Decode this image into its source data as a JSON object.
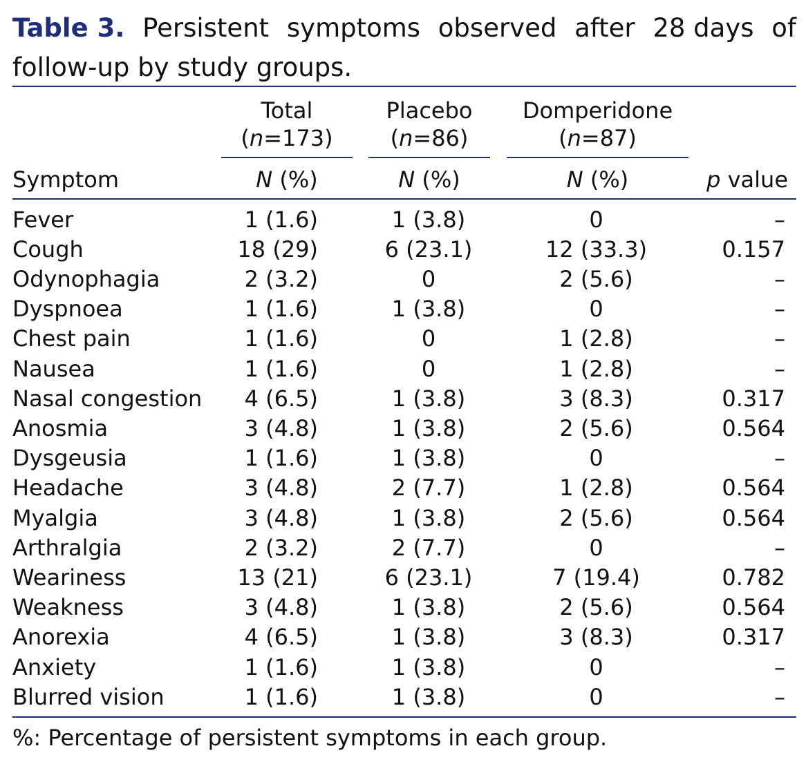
{
  "caption": {
    "label": "Table 3.",
    "line1_words": [
      "Persistent",
      "symptoms",
      "observed",
      "after",
      "28 days",
      "of"
    ],
    "line2": "follow-up by study groups."
  },
  "headers": {
    "total_name": "Total",
    "total_n": "173",
    "placebo_name": "Placebo",
    "placebo_n": "86",
    "domperidone_name": "Domperidone",
    "domperidone_n": "87",
    "n_symbol": "n",
    "equals": "=",
    "symptom": "Symptom",
    "count_symbol": "N",
    "count_pct": "(%)",
    "p_symbol": "p",
    "p_word": "value"
  },
  "rows": [
    {
      "symptom": "Fever",
      "total": "1 (1.6)",
      "placebo": "1 (3.8)",
      "domperidone": "0",
      "p": "–"
    },
    {
      "symptom": "Cough",
      "total": "18 (29)",
      "placebo": "6 (23.1)",
      "domperidone": "12 (33.3)",
      "p": "0.157"
    },
    {
      "symptom": "Odynophagia",
      "total": "2 (3.2)",
      "placebo": "0",
      "domperidone": "2 (5.6)",
      "p": "–"
    },
    {
      "symptom": "Dyspnoea",
      "total": "1 (1.6)",
      "placebo": "1 (3.8)",
      "domperidone": "0",
      "p": "–"
    },
    {
      "symptom": "Chest pain",
      "total": "1 (1.6)",
      "placebo": "0",
      "domperidone": "1 (2.8)",
      "p": "–"
    },
    {
      "symptom": "Nausea",
      "total": "1 (1.6)",
      "placebo": "0",
      "domperidone": "1 (2.8)",
      "p": "–"
    },
    {
      "symptom": "Nasal congestion",
      "total": "4 (6.5)",
      "placebo": "1 (3.8)",
      "domperidone": "3 (8.3)",
      "p": "0.317"
    },
    {
      "symptom": "Anosmia",
      "total": "3 (4.8)",
      "placebo": "1 (3.8)",
      "domperidone": "2 (5.6)",
      "p": "0.564"
    },
    {
      "symptom": "Dysgeusia",
      "total": "1 (1.6)",
      "placebo": "1 (3.8)",
      "domperidone": "0",
      "p": "–"
    },
    {
      "symptom": "Headache",
      "total": "3 (4.8)",
      "placebo": "2 (7.7)",
      "domperidone": "1 (2.8)",
      "p": "0.564"
    },
    {
      "symptom": "Myalgia",
      "total": "3 (4.8)",
      "placebo": "1 (3.8)",
      "domperidone": "2 (5.6)",
      "p": "0.564"
    },
    {
      "symptom": "Arthralgia",
      "total": "2 (3.2)",
      "placebo": "2 (7.7)",
      "domperidone": "0",
      "p": "–"
    },
    {
      "symptom": "Weariness",
      "total": "13 (21)",
      "placebo": "6 (23.1)",
      "domperidone": "7 (19.4)",
      "p": "0.782"
    },
    {
      "symptom": "Weakness",
      "total": "3 (4.8)",
      "placebo": "1 (3.8)",
      "domperidone": "2 (5.6)",
      "p": "0.564"
    },
    {
      "symptom": "Anorexia",
      "total": "4 (6.5)",
      "placebo": "1 (3.8)",
      "domperidone": "3 (8.3)",
      "p": "0.317"
    },
    {
      "symptom": "Anxiety",
      "total": "1 (1.6)",
      "placebo": "1 (3.8)",
      "domperidone": "0",
      "p": "–"
    },
    {
      "symptom": "Blurred vision",
      "total": "1 (1.6)",
      "placebo": "1 (3.8)",
      "domperidone": "0",
      "p": "–"
    }
  ],
  "footnote": "%: Percentage of persistent symptoms in each group.",
  "colors": {
    "accent": "#1f2d7a",
    "text": "#111111"
  }
}
